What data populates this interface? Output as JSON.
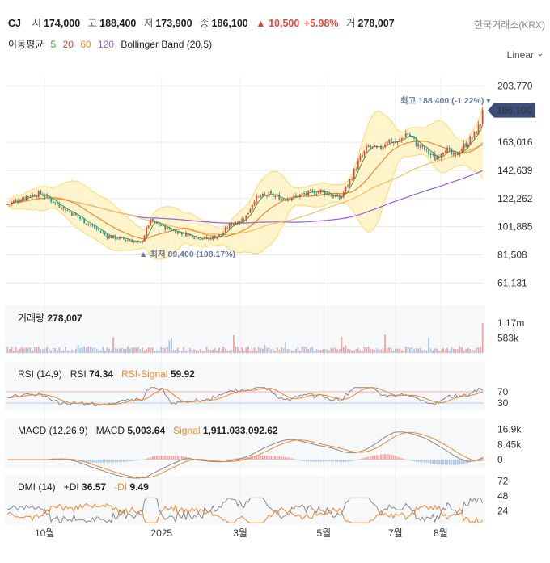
{
  "header": {
    "name": "CJ",
    "open_label": "시",
    "open": "174,000",
    "high_label": "고",
    "high": "188,400",
    "low_label": "저",
    "low": "173,900",
    "close_label": "종",
    "close": "186,100",
    "change": "▲ 10,500",
    "change_pct": "+5.98%",
    "volume_label": "거",
    "volume": "278,007",
    "exchange": "한국거래소(KRX)"
  },
  "indicators": {
    "ma_label": "이동평균",
    "ma5": "5",
    "ma20": "20",
    "ma60": "60",
    "ma120": "120",
    "bb_label": "Bollinger Band (20,5)"
  },
  "scale_label": "Linear",
  "colors": {
    "up": "#e8453c",
    "down": "#2a9d8f",
    "ma5": "#3aa03a",
    "ma20": "#f0872b",
    "ma60": "#f0c060",
    "ma120": "#9b5de5",
    "bb_fill": "#fff4cc",
    "bb_line": "#ffd966",
    "price_tag": "#3b4e7a",
    "grid": "#e9e9e9",
    "panel_bg": "#f7f8fa"
  },
  "chart_data": {
    "type": "candlestick",
    "price_axis_ticks": [
      203770,
      163016,
      142639,
      122262,
      101885,
      81508,
      61131
    ],
    "price_axis_labels": [
      "203,770",
      "163,016",
      "142,639",
      "122,262",
      "101,885",
      "81,508",
      "61,131"
    ],
    "price_ylim": [
      52000,
      211000
    ],
    "last_price": 186100,
    "last_price_label": "186,100",
    "max_annotation": "최고 188,400 (-1.22%)",
    "min_annotation": "최저 89,400 (108.17%)",
    "x_ticks": [
      "10월",
      "2025",
      "3월",
      "5월",
      "7월",
      "8월"
    ],
    "price_anchors": [
      [
        0,
        118000
      ],
      [
        0.04,
        124000
      ],
      [
        0.07,
        126000
      ],
      [
        0.12,
        115000
      ],
      [
        0.17,
        104000
      ],
      [
        0.21,
        95000
      ],
      [
        0.26,
        92000
      ],
      [
        0.28,
        89400
      ],
      [
        0.3,
        106000
      ],
      [
        0.34,
        100000
      ],
      [
        0.38,
        96000
      ],
      [
        0.42,
        93000
      ],
      [
        0.45,
        96000
      ],
      [
        0.47,
        104000
      ],
      [
        0.5,
        108000
      ],
      [
        0.52,
        122000
      ],
      [
        0.55,
        125000
      ],
      [
        0.58,
        122000
      ],
      [
        0.62,
        125000
      ],
      [
        0.66,
        128000
      ],
      [
        0.7,
        122000
      ],
      [
        0.72,
        135000
      ],
      [
        0.74,
        150000
      ],
      [
        0.76,
        160000
      ],
      [
        0.78,
        157000
      ],
      [
        0.8,
        165000
      ],
      [
        0.82,
        162000
      ],
      [
        0.84,
        170000
      ],
      [
        0.86,
        162000
      ],
      [
        0.88,
        157000
      ],
      [
        0.9,
        151000
      ],
      [
        0.92,
        159000
      ],
      [
        0.94,
        152000
      ],
      [
        0.96,
        160000
      ],
      [
        0.98,
        167000
      ],
      [
        0.995,
        176000
      ],
      [
        1.0,
        186100
      ]
    ],
    "volume": {
      "label": "거래량",
      "value": "278,007",
      "axis_labels": [
        "1.17m",
        "583k"
      ],
      "axis_values": [
        1170000,
        583000
      ],
      "last": 278007,
      "max": 1170000
    },
    "rsi": {
      "label": "RSI (14,9)",
      "name": "RSI",
      "value": "74.34",
      "signal_name": "RSI-Signal",
      "signal_value": "59.92",
      "levels": [
        70,
        30
      ],
      "level_labels": [
        "70",
        "30"
      ]
    },
    "macd": {
      "label": "MACD (12,26,9)",
      "name": "MACD",
      "value": "5,003.64",
      "signal_name": "Signal",
      "signal_value": "1,911.033,092.62",
      "axis_labels": [
        "16.9k",
        "8.45k",
        "0"
      ],
      "axis_values": [
        16900,
        8450,
        0
      ]
    },
    "dmi": {
      "label": "DMI (14)",
      "plus_name": "+DI",
      "plus_value": "36.57",
      "minus_name": "-DI",
      "minus_value": "9.49",
      "axis_labels": [
        "72",
        "48",
        "24"
      ],
      "axis_values": [
        72,
        48,
        24
      ]
    }
  }
}
